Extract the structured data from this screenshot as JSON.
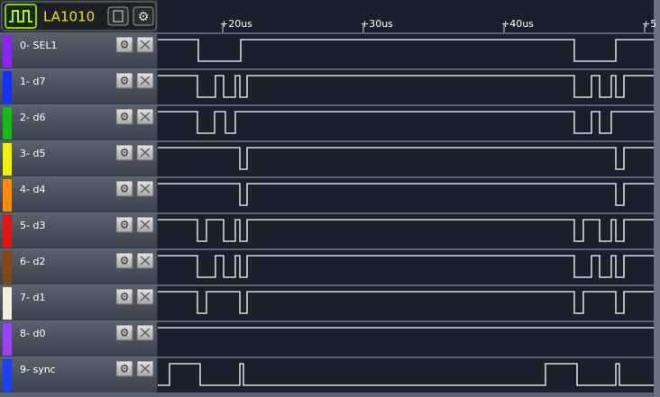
{
  "toolbar": {
    "device": "LA1010"
  },
  "ruler": {
    "labels": [
      "+20us",
      "+30us",
      "+40us",
      "+5"
    ]
  },
  "channels": [
    {
      "label": "0- SEL1"
    },
    {
      "label": "1- d7"
    },
    {
      "label": "2- d6"
    },
    {
      "label": "3- d5"
    },
    {
      "label": "4- d4"
    },
    {
      "label": "5- d3"
    },
    {
      "label": "6- d2"
    },
    {
      "label": "7- d1"
    },
    {
      "label": "8- d0"
    },
    {
      "label": "9- sync"
    }
  ]
}
